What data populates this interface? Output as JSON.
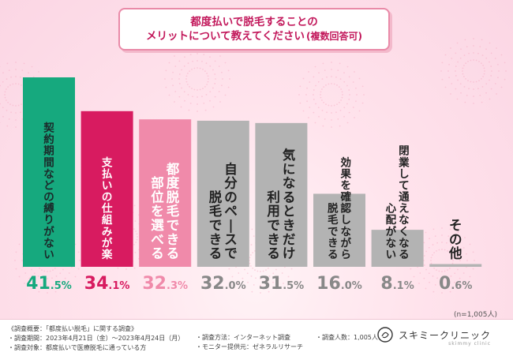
{
  "title": {
    "line1": "都度払いで脱毛することの",
    "line2": "メリットについて教えてください",
    "note": "(複数回答可)"
  },
  "chart_data": {
    "type": "bar",
    "categories": [
      "契約期間などの縛りがない",
      "支払いの仕組みが楽",
      "都度脱毛できる部位を選べる",
      "自分のペースで脱毛できる",
      "気になるときだけ利用できる",
      "効果を確認しながら脱毛できる",
      "閉業して通えなくなる心配がない",
      "その他"
    ],
    "labels_vertical": [
      [
        "契約期間などの縛りがない"
      ],
      [
        "支払いの仕組みが楽"
      ],
      [
        "都度脱毛できる",
        "部位を選べる"
      ],
      [
        "自分のペースで",
        "脱毛できる"
      ],
      [
        "気になるときだけ",
        "利用できる"
      ],
      [
        "効果を確認しながら",
        "脱毛できる"
      ],
      [
        "閉業して通えなくなる",
        "心配がない"
      ],
      [
        "その他"
      ]
    ],
    "values": [
      41.5,
      34.1,
      32.3,
      32.0,
      31.5,
      16.0,
      8.1,
      0.6
    ],
    "value_labels": [
      [
        "41",
        ".5%"
      ],
      [
        "34",
        ".1%"
      ],
      [
        "32",
        ".3%"
      ],
      [
        "32",
        ".0%"
      ],
      [
        "31",
        ".5%"
      ],
      [
        "16",
        ".0%"
      ],
      [
        "8",
        ".1%"
      ],
      [
        "0",
        ".6%"
      ]
    ],
    "unit": "%",
    "ylim": [
      0,
      41.5
    ],
    "bar_colors": [
      "#16a97e",
      "#d81b60",
      "#f08aaa",
      "#b3b3b3",
      "#b3b3b3",
      "#b3b3b3",
      "#b3b3b3",
      "#b3b3b3"
    ],
    "label_colors": [
      "#16a97e",
      "#d81b60",
      "#f08aaa",
      "#888888",
      "#888888",
      "#888888",
      "#888888",
      "#888888"
    ],
    "text_colors": [
      "#1b2a2a",
      "#ffffff",
      "#ffffff",
      "#222222",
      "#222222",
      "#222222",
      "#222222",
      "#222222"
    ],
    "grid": false
  },
  "sample_size": "(n=1,005人)",
  "footer": {
    "col1": [
      "《調査概要：「都度払い脱毛」に関する調査》",
      "・調査期間：2023年4月21日（金）〜2023年4月24日（月）",
      "・調査対象：都度払いで医療脱毛に通っている方"
    ],
    "col2": [
      "・調査方法：インターネット調査",
      "・モニター提供元：ゼネラルリサーチ"
    ],
    "col3": [
      "・調査人数：1,005人"
    ],
    "logo_text": "スキミークリニック",
    "logo_sub": "skimmy clinic"
  }
}
